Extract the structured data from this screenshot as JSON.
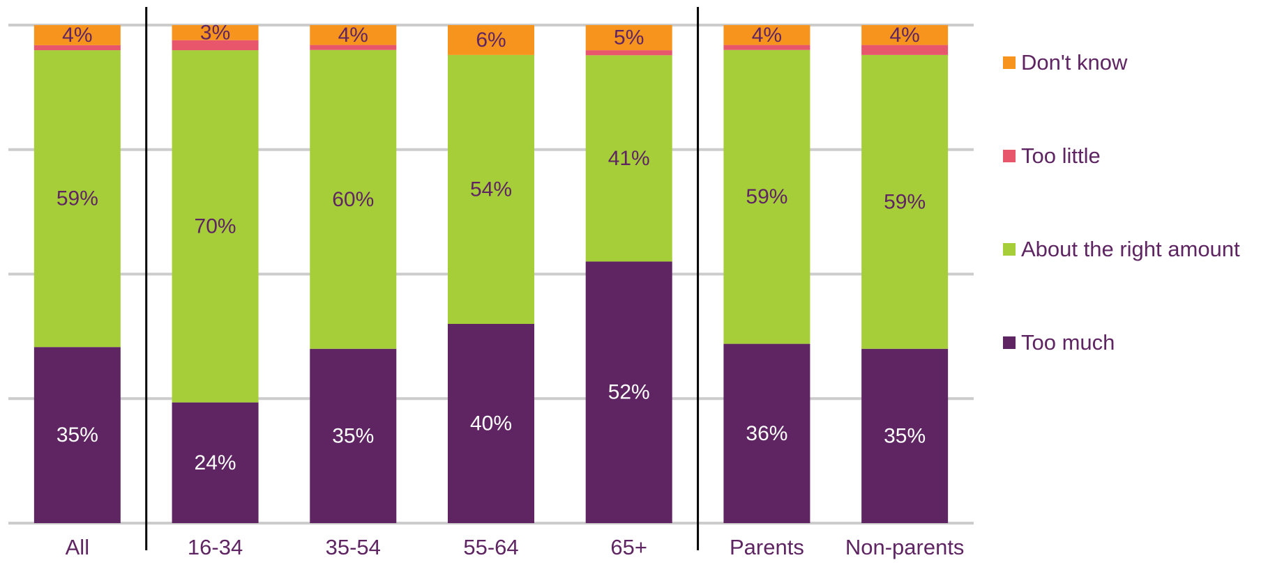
{
  "chart_data": {
    "type": "bar",
    "stacked": true,
    "orientation": "vertical",
    "title": "",
    "xlabel": "",
    "ylabel": "",
    "ylim": [
      0,
      100
    ],
    "grid": true,
    "legend_position": "right",
    "categories": [
      "All",
      "16-34",
      "35-54",
      "55-64",
      "65+",
      "Parents",
      "Non-parents"
    ],
    "group_separators_after": [
      "All",
      "65+"
    ],
    "series": [
      {
        "name": "Too much",
        "color": "#5f2563",
        "label_color": "#ffffff",
        "values": [
          35,
          24,
          35,
          40,
          52,
          36,
          35
        ],
        "labels": [
          "35%",
          "24%",
          "35%",
          "40%",
          "52%",
          "36%",
          "35%"
        ]
      },
      {
        "name": "About the right amount",
        "color": "#a6ce39",
        "label_color": "#5f2563",
        "values": [
          59,
          70,
          60,
          54,
          41,
          59,
          59
        ],
        "labels": [
          "59%",
          "70%",
          "60%",
          "54%",
          "41%",
          "59%",
          "59%"
        ]
      },
      {
        "name": "Too little",
        "color": "#e8566c",
        "label_color": "#5f2563",
        "values": [
          1,
          2,
          1,
          0,
          1,
          1,
          2
        ],
        "labels": [
          "",
          "",
          "",
          "",
          "",
          "",
          ""
        ]
      },
      {
        "name": "Don't know",
        "color": "#f7941d",
        "label_color": "#5f2563",
        "values": [
          4,
          3,
          4,
          6,
          5,
          4,
          4
        ],
        "labels": [
          "4%",
          "3%",
          "4%",
          "6%",
          "5%",
          "4%",
          "4%"
        ]
      }
    ]
  }
}
